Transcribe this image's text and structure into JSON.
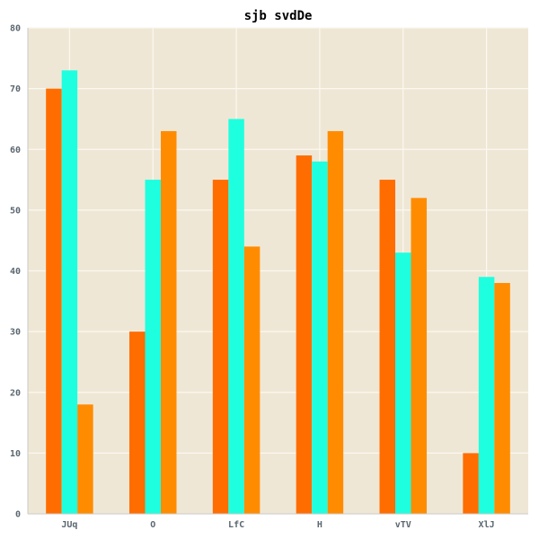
{
  "colors": {
    "plot_background": "#efe7d5",
    "grid": "#fbf8f1",
    "axis": "#c9c9c9",
    "tick_text": "#5b6770"
  },
  "chart_data": {
    "type": "bar",
    "title": "sjb svdDe",
    "xlabel": "",
    "ylabel": "",
    "categories": [
      "JUq",
      "O",
      "LfC",
      "H",
      "vTV",
      "XlJ"
    ],
    "ylim": [
      0,
      80
    ],
    "yticks": [
      0,
      10,
      20,
      30,
      40,
      50,
      60,
      70,
      80
    ],
    "grid": true,
    "series": [
      {
        "color": "#ff6d00",
        "values": [
          70,
          30,
          55,
          59,
          55,
          10
        ]
      },
      {
        "color": "#1effe0",
        "values": [
          73,
          55,
          65,
          58,
          43,
          39
        ]
      },
      {
        "color": "#ff8c00",
        "values": [
          18,
          63,
          44,
          63,
          52,
          38
        ]
      }
    ]
  }
}
